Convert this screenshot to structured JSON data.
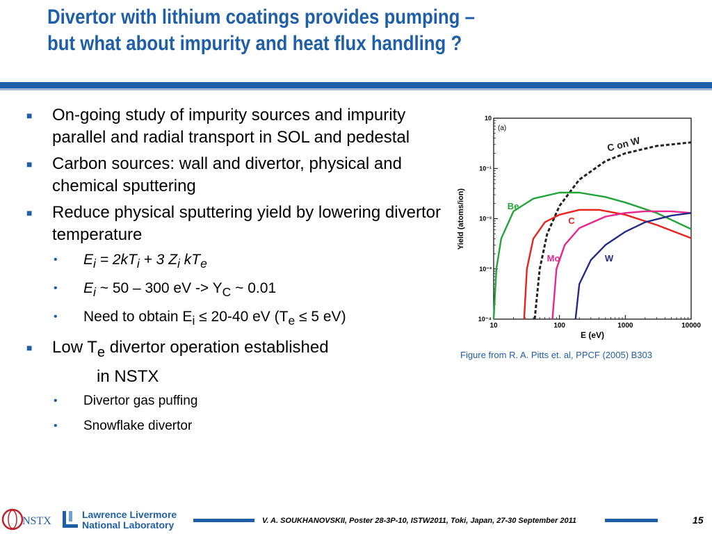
{
  "title": {
    "line1": "Divertor with lithium coatings provides pumping –",
    "line2": "but what about impurity and heat flux handling ?"
  },
  "bullets": {
    "b1": "On-going study of impurity sources and impurity parallel and radial transport in SOL and pedestal",
    "b2": "Carbon sources: wall and divertor, physical and chemical sputtering",
    "b3": "Reduce physical sputtering yield by lowering divertor temperature",
    "s1": {
      "e": "E",
      "i": "i",
      "eq": " = 2kT",
      "i2": "i",
      "plus": " + 3 Z",
      "i3": "i",
      "kt": " kT",
      "e2": "e"
    },
    "s2": {
      "e": "E",
      "i": "i",
      "rest": " ~ 50 – 300 eV -> Y",
      "c": "C",
      "tail": " ~ 0.01"
    },
    "s3": {
      "pre": "Need to obtain E",
      "i": "i",
      "mid": " ≤ 20-40 eV (T",
      "e": "e",
      "post": " ≤ 5 eV)"
    },
    "b4": {
      "pre": "Low T",
      "e": "e",
      "post": " divertor operation established",
      "line2": "in NSTX"
    },
    "s4": "Divertor gas puffing",
    "s5": "Snowflake divertor"
  },
  "figure_caption": "Figure from R. A. Pitts et. al, PPCF (2005) B303",
  "chart_data": {
    "type": "line",
    "panel_label": "(a)",
    "xlabel": "E (eV)",
    "ylabel": "Yield (atoms/ion)",
    "xscale": "log",
    "yscale": "log",
    "xlim": [
      10,
      10000
    ],
    "ylim": [
      0.0001,
      1
    ],
    "xticks": [
      "10",
      "100",
      "1000",
      "10000"
    ],
    "yticks": [
      "10⁻⁴",
      "10⁻³",
      "10⁻²",
      "10⁻¹",
      "10"
    ],
    "series": [
      {
        "name": "C on W",
        "color": "#222222",
        "dashed": true,
        "points": [
          [
            42,
            0.0001
          ],
          [
            50,
            0.001
          ],
          [
            65,
            0.005
          ],
          [
            100,
            0.018
          ],
          [
            200,
            0.06
          ],
          [
            500,
            0.14
          ],
          [
            1000,
            0.2
          ],
          [
            3000,
            0.28
          ],
          [
            10000,
            0.33
          ]
        ]
      },
      {
        "name": "Be",
        "color": "#22a538",
        "dashed": false,
        "points": [
          [
            10,
            0.0001
          ],
          [
            11,
            0.001
          ],
          [
            13,
            0.004
          ],
          [
            20,
            0.014
          ],
          [
            40,
            0.025
          ],
          [
            100,
            0.033
          ],
          [
            200,
            0.033
          ],
          [
            500,
            0.027
          ],
          [
            1000,
            0.021
          ],
          [
            3000,
            0.013
          ],
          [
            10000,
            0.0062
          ]
        ]
      },
      {
        "name": "C",
        "color": "#e8221c",
        "dashed": false,
        "points": [
          [
            29,
            0.0001
          ],
          [
            32,
            0.001
          ],
          [
            40,
            0.004
          ],
          [
            60,
            0.0085
          ],
          [
            100,
            0.012
          ],
          [
            200,
            0.015
          ],
          [
            400,
            0.015
          ],
          [
            1000,
            0.012
          ],
          [
            3000,
            0.0075
          ],
          [
            10000,
            0.0041
          ]
        ]
      },
      {
        "name": "Mo",
        "color": "#e8268e",
        "dashed": false,
        "points": [
          [
            78,
            0.0001
          ],
          [
            90,
            0.001
          ],
          [
            120,
            0.003
          ],
          [
            200,
            0.0065
          ],
          [
            500,
            0.011
          ],
          [
            1000,
            0.013
          ],
          [
            2000,
            0.014
          ],
          [
            5000,
            0.014
          ],
          [
            10000,
            0.013
          ]
        ]
      },
      {
        "name": "W",
        "color": "#232a8a",
        "dashed": false,
        "points": [
          [
            175,
            0.0001
          ],
          [
            200,
            0.0005
          ],
          [
            300,
            0.0015
          ],
          [
            500,
            0.003
          ],
          [
            1000,
            0.0055
          ],
          [
            2000,
            0.0085
          ],
          [
            5000,
            0.0115
          ],
          [
            10000,
            0.013
          ]
        ]
      }
    ]
  },
  "footer": {
    "citation": "V. A. SOUKHANOVSKII, Poster 28-3P-10, ISTW2011, Toki, Japan, 27-30 September 2011",
    "page": "15",
    "lab_line1": "Lawrence Livermore",
    "lab_line2": "National Laboratory",
    "logo_text": "NSTX"
  },
  "colors": {
    "accent": "#1f5fa8"
  }
}
